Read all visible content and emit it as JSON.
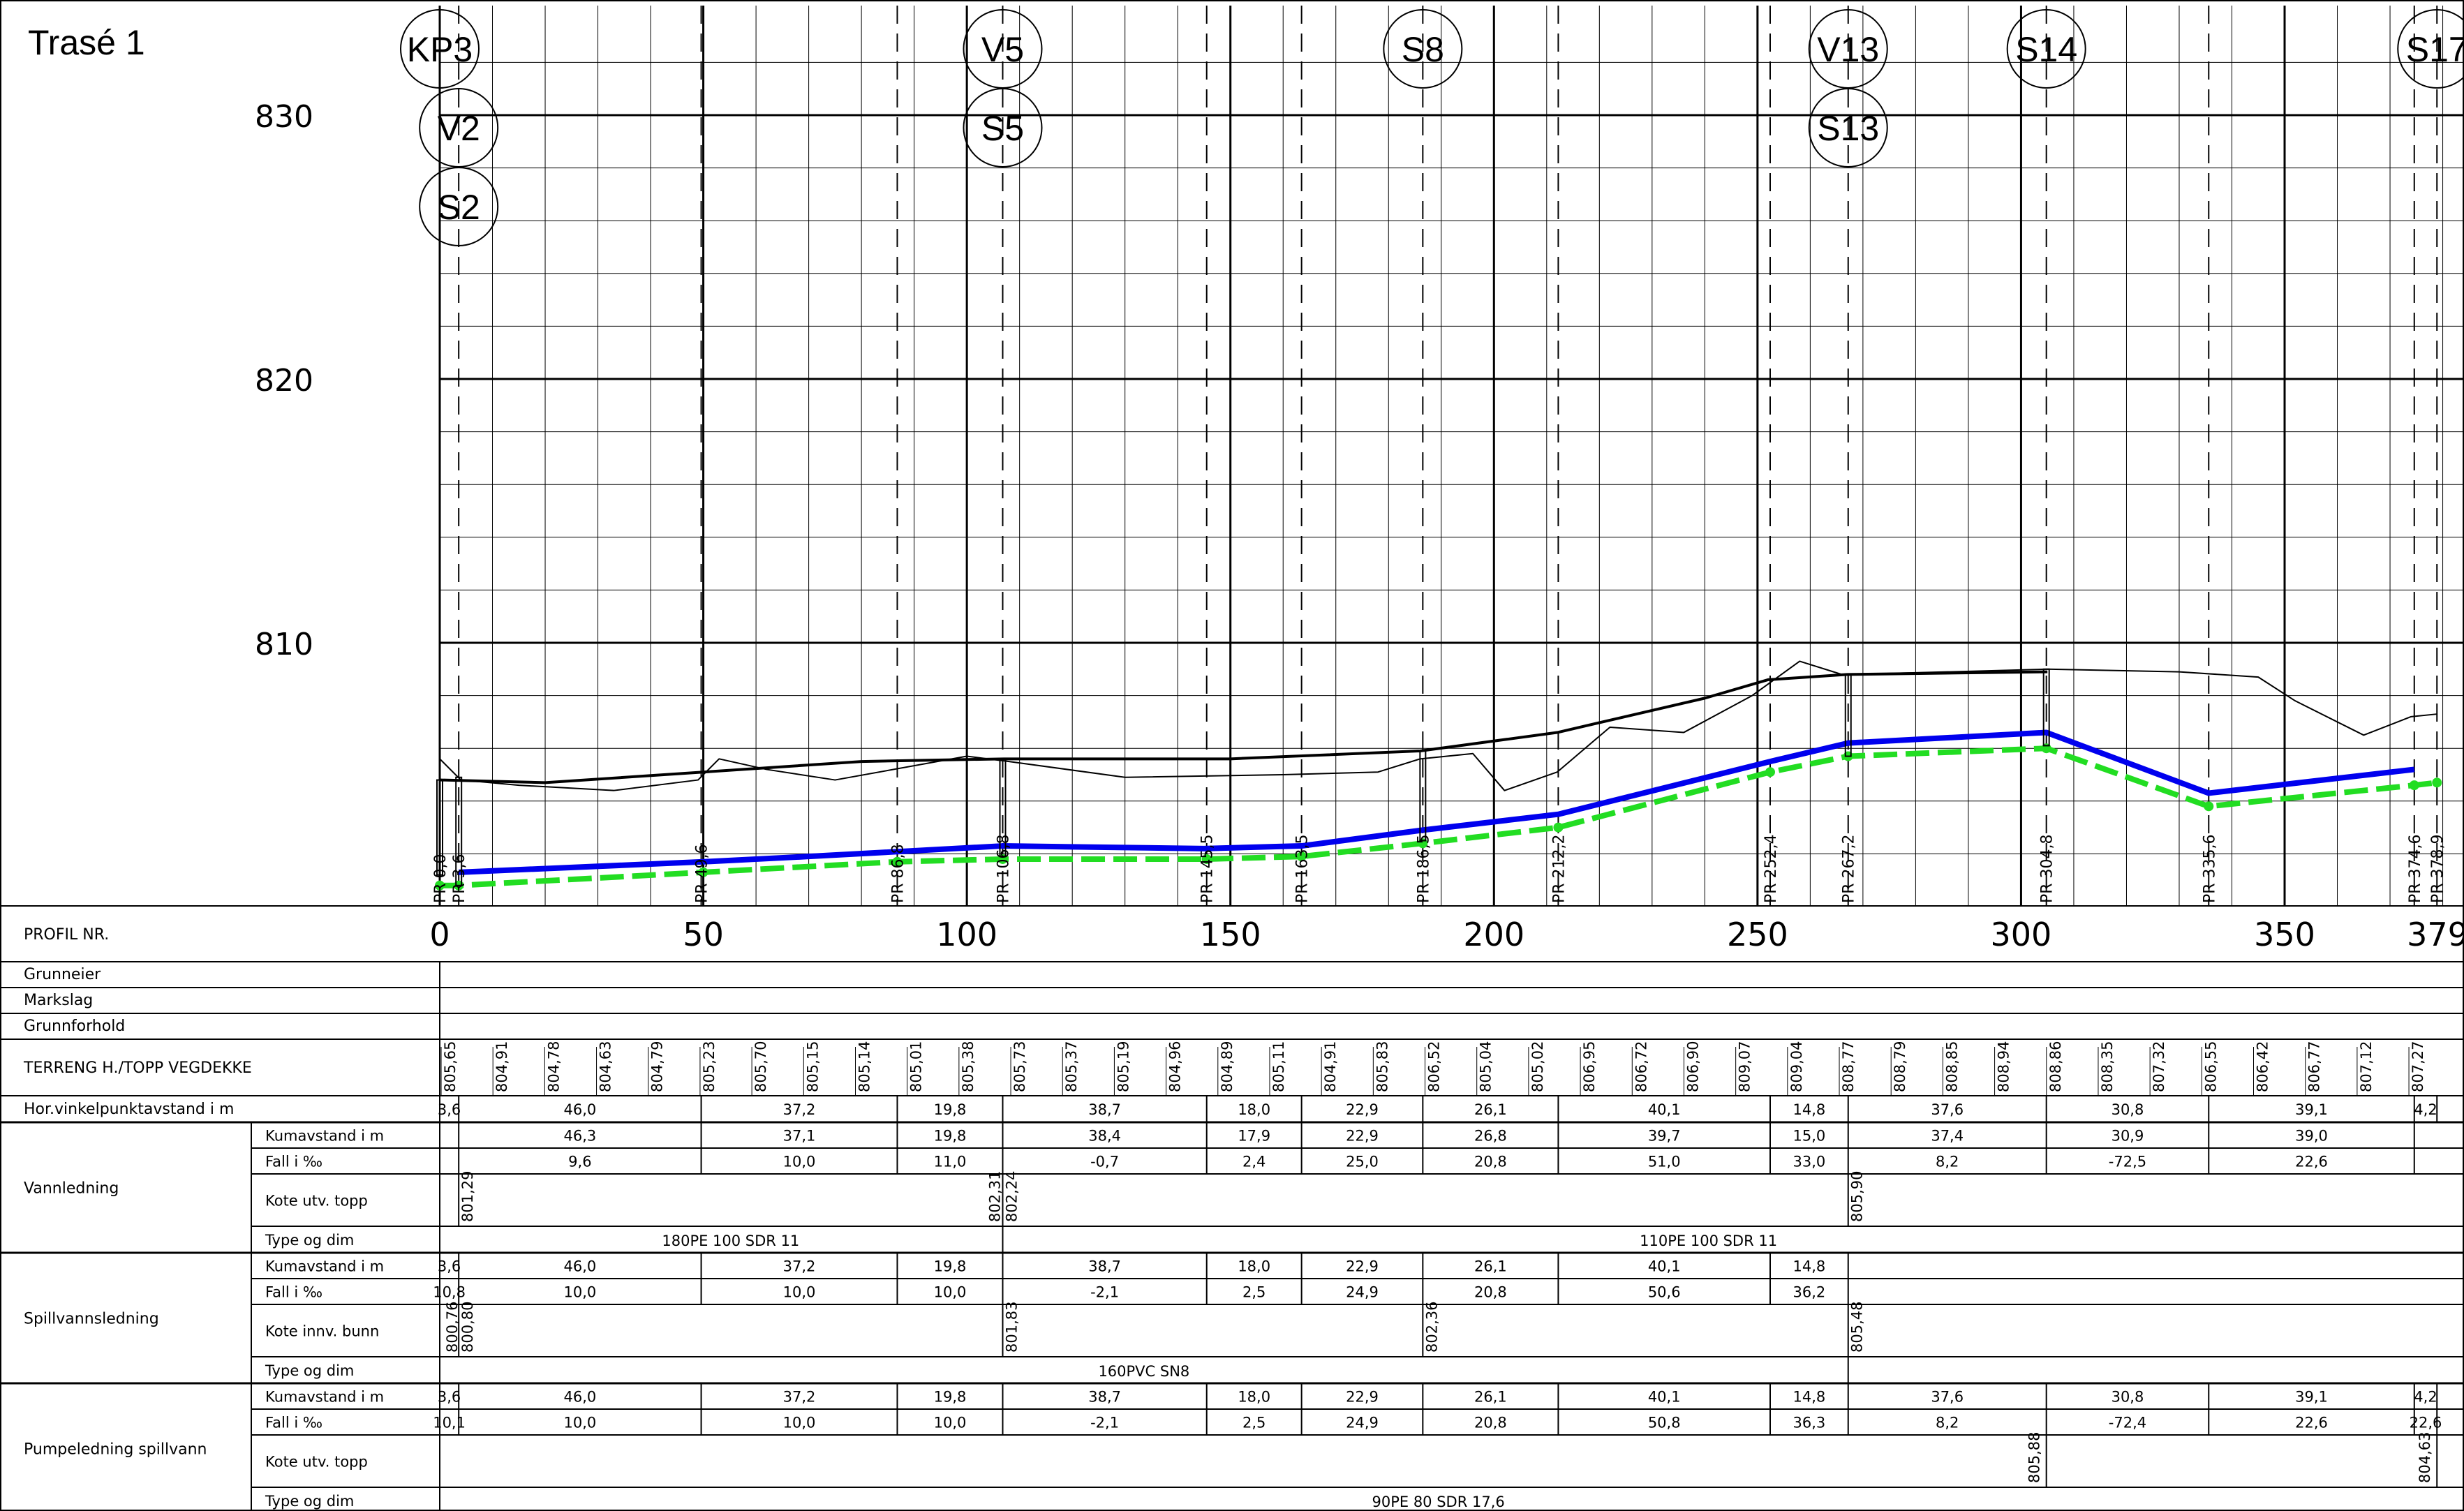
{
  "title": "Trasé 1",
  "elevation_labels": [
    "830",
    "820",
    "810"
  ],
  "station_labels": [
    "0",
    "50",
    "100",
    "150",
    "200",
    "250",
    "300",
    "350",
    "379"
  ],
  "structures": [
    {
      "label": "KP3",
      "station": 0,
      "row": 0
    },
    {
      "label": "V2",
      "station": 3.6,
      "row": 1
    },
    {
      "label": "S2",
      "station": 3.6,
      "row": 2
    },
    {
      "label": "V5",
      "station": 106.8,
      "row": 0
    },
    {
      "label": "S5",
      "station": 106.8,
      "row": 1
    },
    {
      "label": "S8",
      "station": 186.5,
      "row": 0
    },
    {
      "label": "V13",
      "station": 267.2,
      "row": 0
    },
    {
      "label": "S13",
      "station": 267.2,
      "row": 1
    },
    {
      "label": "S14",
      "station": 304.8,
      "row": 0
    },
    {
      "label": "S17",
      "station": 378.9,
      "row": 0
    }
  ],
  "pr_markers": [
    {
      "label": "PR 0,0",
      "station": 0
    },
    {
      "label": "PR 3,6",
      "station": 3.6
    },
    {
      "label": "PR 49,6",
      "station": 49.6
    },
    {
      "label": "PR 86,8",
      "station": 86.8
    },
    {
      "label": "PR 106,8",
      "station": 106.8
    },
    {
      "label": "PR 145,5",
      "station": 145.5
    },
    {
      "label": "PR 163,5",
      "station": 163.5
    },
    {
      "label": "PR 186,5",
      "station": 186.5
    },
    {
      "label": "PR 212,2",
      "station": 212.2
    },
    {
      "label": "PR 252,4",
      "station": 252.4
    },
    {
      "label": "PR 267,2",
      "station": 267.2
    },
    {
      "label": "PR 304,8",
      "station": 304.8
    },
    {
      "label": "PR 335,6",
      "station": 335.6
    },
    {
      "label": "PR 374,6",
      "station": 374.6
    },
    {
      "label": "PR 378,9",
      "station": 378.9
    }
  ],
  "chart_data": {
    "type": "line",
    "x_unit": "m",
    "xlim": [
      0,
      379
    ],
    "ylim": [
      800,
      833
    ],
    "xticks": [
      0,
      50,
      100,
      150,
      200,
      250,
      300,
      350,
      379
    ],
    "yticks": [
      810,
      820,
      830
    ],
    "series": [
      {
        "key": "terrain_bold",
        "color": "#000000",
        "points": [
          [
            0,
            804.8
          ],
          [
            20,
            804.7
          ],
          [
            50,
            805.1
          ],
          [
            80,
            805.5
          ],
          [
            107,
            805.6
          ],
          [
            150,
            805.6
          ],
          [
            186,
            805.9
          ],
          [
            212,
            806.6
          ],
          [
            240,
            807.9
          ],
          [
            252,
            808.6
          ],
          [
            267,
            808.8
          ],
          [
            305,
            808.9
          ]
        ]
      },
      {
        "key": "terrain_thin",
        "color": "#000000",
        "points": [
          [
            0,
            805.6
          ],
          [
            4,
            804.8
          ],
          [
            15,
            804.6
          ],
          [
            33,
            804.4
          ],
          [
            49,
            804.8
          ],
          [
            53,
            805.6
          ],
          [
            62,
            805.2
          ],
          [
            75,
            804.8
          ],
          [
            100,
            805.7
          ],
          [
            108,
            805.5
          ],
          [
            130,
            804.9
          ],
          [
            160,
            805.0
          ],
          [
            178,
            805.1
          ],
          [
            186,
            805.6
          ],
          [
            196,
            805.8
          ],
          [
            202,
            804.4
          ],
          [
            212,
            805.1
          ],
          [
            222,
            806.8
          ],
          [
            236,
            806.6
          ],
          [
            249,
            808.0
          ],
          [
            258,
            809.3
          ],
          [
            266,
            808.8
          ],
          [
            268,
            808.8
          ],
          [
            305,
            809.0
          ],
          [
            330,
            808.9
          ],
          [
            345,
            808.7
          ],
          [
            352,
            807.8
          ],
          [
            365,
            806.5
          ],
          [
            374,
            807.2
          ],
          [
            379,
            807.3
          ]
        ]
      },
      {
        "key": "water_main",
        "color": "#0000ee",
        "points": [
          [
            3.6,
            801.3
          ],
          [
            50,
            801.7
          ],
          [
            70,
            801.9
          ],
          [
            106.8,
            802.3
          ],
          [
            145,
            802.2
          ],
          [
            163.5,
            802.3
          ],
          [
            186.5,
            802.9
          ],
          [
            212.2,
            803.5
          ],
          [
            252.4,
            805.5
          ],
          [
            267.2,
            806.2
          ],
          [
            304.8,
            806.6
          ],
          [
            335.6,
            804.3
          ],
          [
            374.6,
            805.2
          ]
        ]
      },
      {
        "key": "sewer_and_pump",
        "color": "#22dd22",
        "dashed": true,
        "points": [
          [
            0,
            800.8
          ],
          [
            3.6,
            800.8
          ],
          [
            50,
            801.3
          ],
          [
            86.8,
            801.7
          ],
          [
            106.8,
            801.8
          ],
          [
            145.5,
            801.8
          ],
          [
            163.5,
            801.9
          ],
          [
            186.5,
            802.4
          ],
          [
            212.2,
            803.0
          ],
          [
            252.4,
            805.1
          ],
          [
            267.2,
            805.7
          ],
          [
            304.8,
            806.0
          ],
          [
            335.6,
            803.8
          ],
          [
            374.6,
            804.6
          ],
          [
            378.9,
            804.7
          ]
        ]
      }
    ]
  },
  "table": {
    "rows_top": [
      "PROFIL NR.",
      "Grunneier",
      "Markslag",
      "Grunnforhold",
      "TERRENG H./TOPP VEGDEKKE",
      "Hor.vinkelpunktavstand i m"
    ],
    "terrain_values": [
      "805,65",
      "804,91",
      "804,78",
      "804,63",
      "804,79",
      "805,23",
      "805,70",
      "805,15",
      "805,14",
      "805,01",
      "805,38",
      "805,73",
      "805,37",
      "805,19",
      "804,96",
      "804,89",
      "805,11",
      "804,91",
      "805,83",
      "806,52",
      "805,04",
      "805,02",
      "806,95",
      "806,72",
      "806,90",
      "809,07",
      "809,04",
      "808,77",
      "808,79",
      "808,85",
      "808,94",
      "808,86",
      "808,35",
      "807,32",
      "806,55",
      "806,42",
      "806,77",
      "807,12",
      "807,27"
    ],
    "hor_segments": [
      "3,6",
      "46,0",
      "37,2",
      "19,8",
      "38,7",
      "18,0",
      "22,9",
      "26,1",
      "40,1",
      "14,8",
      "37,6",
      "30,8",
      "39,1",
      "4,2"
    ],
    "groups": [
      {
        "name": "Vannledning",
        "rows": [
          {
            "label": "Kumavstand i m",
            "values": [
              "46,3",
              "37,1",
              "19,8",
              "38,4",
              "17,9",
              "22,9",
              "26,8",
              "39,7",
              "15,0",
              "37,4",
              "30,9",
              "39,0"
            ]
          },
          {
            "label": "Fall i ‰",
            "values": [
              "9,6",
              "10,0",
              "11,0",
              "-0,7",
              "2,4",
              "25,0",
              "20,8",
              "51,0",
              "33,0",
              "8,2",
              "-72,5",
              "22,6"
            ]
          },
          {
            "label": "Kote utv. topp",
            "values": [
              "801,29",
              "802,31",
              "802,24",
              "805,90"
            ]
          },
          {
            "label": "Type og dim",
            "values": [
              "180PE 100 SDR 11",
              "110PE 100 SDR 11"
            ]
          }
        ]
      },
      {
        "name": "Spillvannsledning",
        "rows": [
          {
            "label": "Kumavstand i m",
            "values": [
              "3,6",
              "46,0",
              "37,2",
              "19,8",
              "38,7",
              "18,0",
              "22,9",
              "26,1",
              "40,1",
              "14,8"
            ]
          },
          {
            "label": "Fall i ‰",
            "values": [
              "10,8",
              "10,0",
              "10,0",
              "10,0",
              "-2,1",
              "2,5",
              "24,9",
              "20,8",
              "50,6",
              "36,2"
            ]
          },
          {
            "label": "Kote innv. bunn",
            "values": [
              "800,76",
              "800,80",
              "801,83",
              "802,36",
              "805,48"
            ]
          },
          {
            "label": "Type og dim",
            "values": [
              "160PVC SN8"
            ]
          }
        ]
      },
      {
        "name": "Pumpeledning spillvann",
        "rows": [
          {
            "label": "Kumavstand i m",
            "values": [
              "3,6",
              "46,0",
              "37,2",
              "19,8",
              "38,7",
              "18,0",
              "22,9",
              "26,1",
              "40,1",
              "14,8",
              "37,6",
              "30,8",
              "39,1",
              "4,2"
            ]
          },
          {
            "label": "Fall i ‰",
            "values": [
              "10,1",
              "10,0",
              "10,0",
              "10,0",
              "-2,1",
              "2,5",
              "24,9",
              "20,8",
              "50,8",
              "36,3",
              "8,2",
              "-72,4",
              "22,6",
              "22,6"
            ]
          },
          {
            "label": "Kote utv. topp",
            "values": [
              "805,88",
              "804,63"
            ]
          },
          {
            "label": "Type og dim",
            "values": [
              "90PE 80 SDR 17,6"
            ]
          }
        ]
      }
    ]
  }
}
